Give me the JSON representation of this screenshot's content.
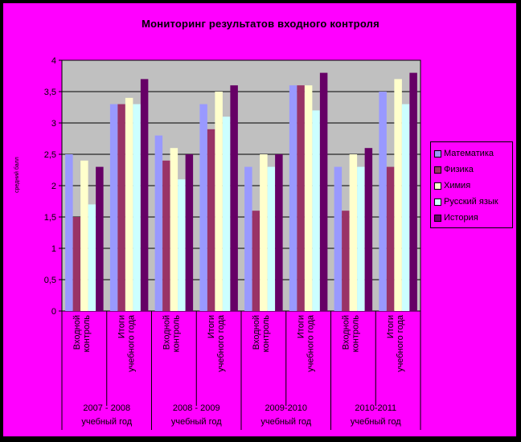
{
  "chart_data": {
    "type": "bar",
    "title": "Мониторинг результатов входного контроля",
    "ylabel": "средний балл",
    "ylim": [
      0,
      4
    ],
    "yticks": [
      "0",
      "0,5",
      "1",
      "1,5",
      "2",
      "2,5",
      "3",
      "3,5",
      "4"
    ],
    "grid": true,
    "legend_position": "right",
    "colors": {
      "page": "#ff00ff",
      "plot": "#c0c0c0",
      "frame": "#000000"
    },
    "groups": [
      {
        "lines": [
          "2007 - 2008",
          "учебный год"
        ]
      },
      {
        "lines": [
          "2008 - 2009",
          "учебный год"
        ]
      },
      {
        "lines": [
          "2009-2010",
          "учебный год"
        ]
      },
      {
        "lines": [
          "2010-2011",
          "учебный год"
        ]
      }
    ],
    "categories": [
      [
        "Входной",
        "контроль"
      ],
      [
        "Итоги",
        "учебного года"
      ],
      [
        "Входной",
        "контроль"
      ],
      [
        "Итоги",
        "учебного года"
      ],
      [
        "Входной",
        "контроль"
      ],
      [
        "Итоги",
        "учебного года"
      ],
      [
        "Входной",
        "контроль"
      ],
      [
        "Итоги",
        "учебного года"
      ]
    ],
    "series": [
      {
        "name": "Математика",
        "color": "#9999ff",
        "values": [
          2.5,
          3.3,
          2.8,
          3.3,
          2.3,
          3.6,
          2.3,
          3.5
        ]
      },
      {
        "name": "Физика",
        "color": "#993366",
        "values": [
          1.5,
          3.3,
          2.4,
          2.9,
          1.6,
          3.6,
          1.6,
          2.3
        ]
      },
      {
        "name": "Химия",
        "color": "#ffffcc",
        "values": [
          2.4,
          3.4,
          2.6,
          3.5,
          2.5,
          3.6,
          2.5,
          3.7
        ]
      },
      {
        "name": "Русский язык",
        "color": "#ccffff",
        "values": [
          1.7,
          3.3,
          2.1,
          3.1,
          2.3,
          3.2,
          2.3,
          3.3
        ]
      },
      {
        "name": "История",
        "color": "#660066",
        "values": [
          2.3,
          3.7,
          2.5,
          3.6,
          2.5,
          3.8,
          2.6,
          3.8
        ]
      }
    ]
  }
}
